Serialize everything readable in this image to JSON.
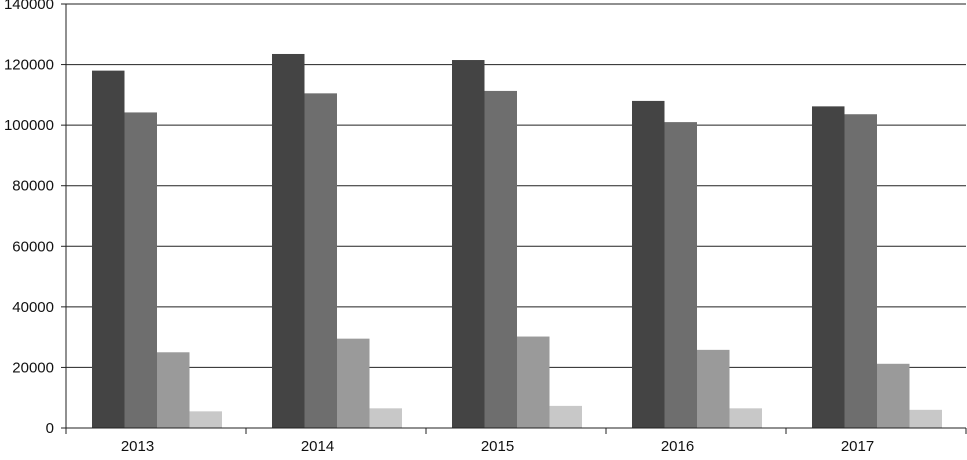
{
  "chart_data": {
    "type": "bar",
    "title": "",
    "xlabel": "",
    "ylabel": "",
    "categories": [
      "2013",
      "2014",
      "2015",
      "2016",
      "2017"
    ],
    "ylim": [
      0,
      140000
    ],
    "yticks": [
      0,
      20000,
      40000,
      60000,
      80000,
      100000,
      120000,
      140000
    ],
    "ytick_labels": [
      "0",
      "20000",
      "40000",
      "60000",
      "80000",
      "100000",
      "120000",
      "140000"
    ],
    "grid": "horizontal",
    "legend": "none",
    "series": [
      {
        "values": [
          118000,
          123500,
          121500,
          108000,
          106200
        ],
        "color": "#444444"
      },
      {
        "values": [
          104200,
          110500,
          111300,
          101000,
          103600
        ],
        "color": "#6e6e6e"
      },
      {
        "values": [
          25000,
          29500,
          30200,
          25800,
          21200
        ],
        "color": "#9a9a9a"
      },
      {
        "values": [
          5500,
          6500,
          7300,
          6500,
          6000
        ],
        "color": "#c8c8c8"
      }
    ]
  }
}
